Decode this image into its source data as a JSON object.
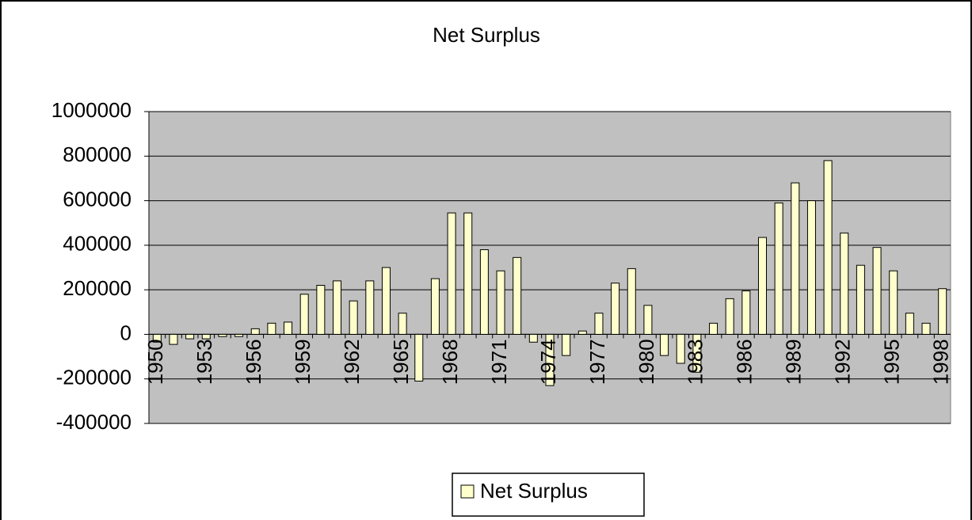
{
  "chart_data": {
    "type": "bar",
    "title": "Net Surplus",
    "categories": [
      "1950",
      null,
      null,
      "1953",
      null,
      null,
      "1956",
      null,
      null,
      "1959",
      null,
      null,
      "1962",
      null,
      null,
      "1965",
      null,
      null,
      "1968",
      null,
      null,
      "1971",
      null,
      null,
      "1974",
      null,
      null,
      "1977",
      null,
      null,
      "1980",
      null,
      null,
      "1983",
      null,
      null,
      "1986",
      null,
      null,
      "1989",
      null,
      null,
      "1992",
      null,
      null,
      "1995",
      null,
      null,
      "1998"
    ],
    "series": [
      {
        "name": "Net Surplus",
        "color": "#ffffcc",
        "values": [
          -35000,
          -45000,
          -20000,
          -20000,
          -10000,
          -10000,
          25000,
          50000,
          55000,
          180000,
          220000,
          240000,
          150000,
          240000,
          300000,
          95000,
          -210000,
          250000,
          545000,
          545000,
          380000,
          285000,
          345000,
          -35000,
          -230000,
          -95000,
          15000,
          95000,
          230000,
          295000,
          130000,
          -95000,
          -130000,
          -170000,
          50000,
          160000,
          195000,
          435000,
          590000,
          680000,
          600000,
          780000,
          455000,
          310000,
          390000,
          285000,
          95000,
          50000,
          205000
        ]
      }
    ],
    "ylim": [
      -400000,
      1000000
    ],
    "yticks": [
      -400000,
      -200000,
      0,
      200000,
      400000,
      600000,
      800000,
      1000000
    ],
    "grid": true,
    "plot_background": "#c0c0c0",
    "legend": "bottom"
  }
}
